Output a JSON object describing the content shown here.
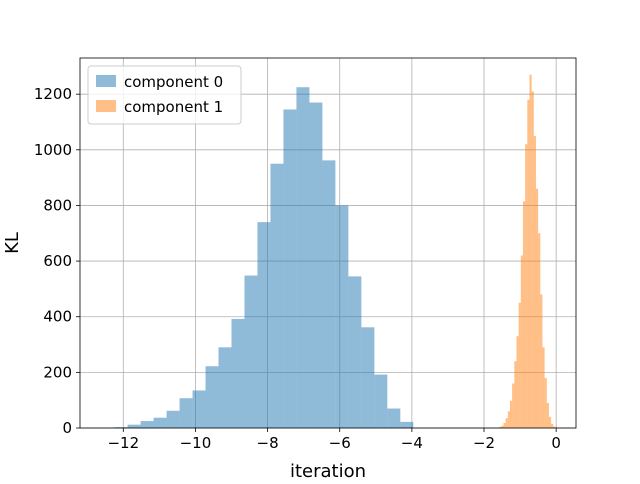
{
  "chart_data": {
    "type": "bar",
    "xlabel": "iteration",
    "ylabel": "KL",
    "xlim": [
      -13.2,
      0.55
    ],
    "ylim": [
      0,
      1330
    ],
    "xticks": [
      -12,
      -10,
      -8,
      -6,
      -4,
      -2,
      0
    ],
    "xtick_labels": [
      "−12",
      "−10",
      "−8",
      "−6",
      "−4",
      "−2",
      "0"
    ],
    "yticks": [
      0,
      200,
      400,
      600,
      800,
      1000,
      1200
    ],
    "ytick_labels": [
      "0",
      "200",
      "400",
      "600",
      "800",
      "1000",
      "1200"
    ],
    "grid": true,
    "legend_position": "upper-left",
    "series": [
      {
        "name": "component 0",
        "color": "#1f77b4",
        "opacity": 0.5,
        "bins": [
          [
            -12.24,
            -11.88,
            3
          ],
          [
            -11.88,
            -11.52,
            12
          ],
          [
            -11.52,
            -11.16,
            25
          ],
          [
            -11.16,
            -10.8,
            37
          ],
          [
            -10.8,
            -10.44,
            62
          ],
          [
            -10.44,
            -10.08,
            107
          ],
          [
            -10.08,
            -9.72,
            135
          ],
          [
            -9.72,
            -9.36,
            222
          ],
          [
            -9.36,
            -9.0,
            290
          ],
          [
            -9.0,
            -8.64,
            392
          ],
          [
            -8.64,
            -8.28,
            548
          ],
          [
            -8.28,
            -7.92,
            740
          ],
          [
            -7.92,
            -7.56,
            950
          ],
          [
            -7.56,
            -7.2,
            1145
          ],
          [
            -7.2,
            -6.84,
            1225
          ],
          [
            -6.84,
            -6.48,
            1170
          ],
          [
            -6.48,
            -6.12,
            962
          ],
          [
            -6.12,
            -5.76,
            800
          ],
          [
            -5.76,
            -5.4,
            545
          ],
          [
            -5.4,
            -5.04,
            362
          ],
          [
            -5.04,
            -4.68,
            192
          ],
          [
            -4.68,
            -4.32,
            70
          ],
          [
            -4.32,
            -3.96,
            22
          ]
        ]
      },
      {
        "name": "component 1",
        "color": "#ff7f0e",
        "opacity": 0.5,
        "bins": [
          [
            -1.7,
            -1.64,
            1
          ],
          [
            -1.64,
            -1.58,
            2
          ],
          [
            -1.58,
            -1.52,
            4
          ],
          [
            -1.52,
            -1.46,
            8
          ],
          [
            -1.46,
            -1.4,
            18
          ],
          [
            -1.4,
            -1.34,
            35
          ],
          [
            -1.34,
            -1.28,
            60
          ],
          [
            -1.28,
            -1.22,
            98
          ],
          [
            -1.22,
            -1.16,
            160
          ],
          [
            -1.16,
            -1.1,
            240
          ],
          [
            -1.1,
            -1.04,
            330
          ],
          [
            -1.04,
            -0.98,
            450
          ],
          [
            -0.98,
            -0.92,
            620
          ],
          [
            -0.92,
            -0.86,
            815
          ],
          [
            -0.86,
            -0.8,
            1020
          ],
          [
            -0.8,
            -0.74,
            1180
          ],
          [
            -0.74,
            -0.68,
            1270
          ],
          [
            -0.68,
            -0.62,
            1210
          ],
          [
            -0.62,
            -0.56,
            1050
          ],
          [
            -0.56,
            -0.5,
            860
          ],
          [
            -0.5,
            -0.44,
            700
          ],
          [
            -0.44,
            -0.38,
            480
          ],
          [
            -0.38,
            -0.32,
            290
          ],
          [
            -0.32,
            -0.26,
            180
          ],
          [
            -0.26,
            -0.2,
            90
          ],
          [
            -0.2,
            -0.14,
            40
          ],
          [
            -0.14,
            -0.08,
            15
          ],
          [
            -0.08,
            -0.02,
            5
          ],
          [
            -0.02,
            0.04,
            2
          ]
        ]
      }
    ]
  }
}
